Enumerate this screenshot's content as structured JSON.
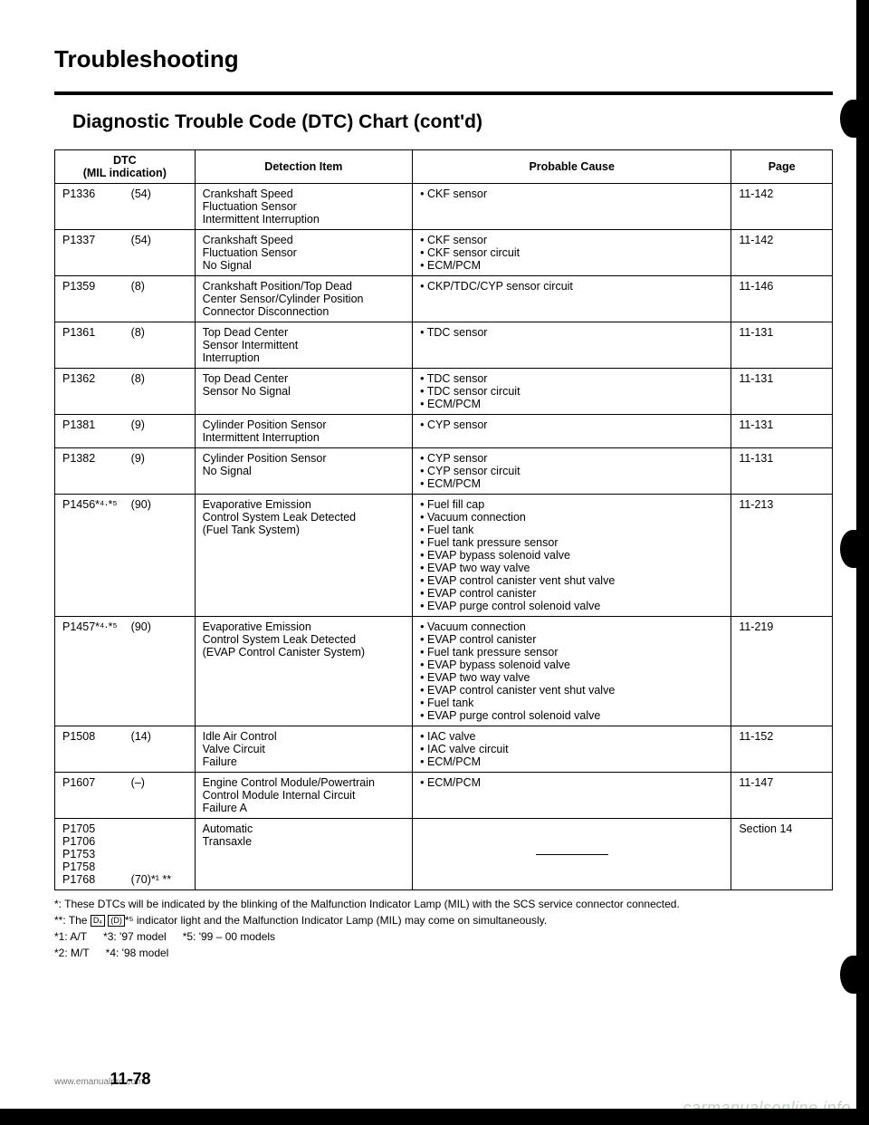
{
  "title": "Troubleshooting",
  "subtitle": "Diagnostic Trouble Code (DTC) Chart (cont'd)",
  "headers": {
    "dtc": "DTC\n(MIL indication)",
    "detection": "Detection Item",
    "cause": "Probable Cause",
    "page": "Page"
  },
  "rows": [
    {
      "code": "P1336",
      "mil": "(54)",
      "detection": "Crankshaft Speed\nFluctuation Sensor\nIntermittent Interruption",
      "causes": [
        "CKF sensor"
      ],
      "page": "11-142"
    },
    {
      "code": "P1337",
      "mil": "(54)",
      "detection": "Crankshaft Speed\nFluctuation Sensor\nNo Signal",
      "causes": [
        "CKF sensor",
        "CKF sensor circuit",
        "ECM/PCM"
      ],
      "page": "11-142"
    },
    {
      "code": "P1359",
      "mil": "(8)",
      "detection": "Crankshaft Position/Top Dead\nCenter Sensor/Cylinder Position\nConnector Disconnection",
      "causes": [
        "CKP/TDC/CYP sensor circuit"
      ],
      "page": "11-146"
    },
    {
      "code": "P1361",
      "mil": "(8)",
      "detection": "Top Dead Center\nSensor Intermittent\nInterruption",
      "causes": [
        "TDC sensor"
      ],
      "page": "11-131"
    },
    {
      "code": "P1362",
      "mil": "(8)",
      "detection": "Top Dead Center\nSensor No Signal",
      "causes": [
        "TDC sensor",
        "TDC sensor circuit",
        "ECM/PCM"
      ],
      "page": "11-131"
    },
    {
      "code": "P1381",
      "mil": "(9)",
      "detection": "Cylinder Position Sensor\nIntermittent Interruption",
      "causes": [
        "CYP sensor"
      ],
      "page": "11-131"
    },
    {
      "code": "P1382",
      "mil": "(9)",
      "detection": "Cylinder Position Sensor\nNo Signal",
      "causes": [
        "CYP sensor",
        "CYP sensor circuit",
        "ECM/PCM"
      ],
      "page": "11-131"
    },
    {
      "code": "P1456*⁴·*⁵",
      "mil": "(90)",
      "detection": "Evaporative Emission\nControl System Leak Detected\n(Fuel Tank System)",
      "causes": [
        "Fuel fill cap",
        "Vacuum connection",
        "Fuel tank",
        "Fuel tank pressure sensor",
        "EVAP bypass solenoid valve",
        "EVAP two way valve",
        "EVAP control canister vent shut valve",
        "EVAP control canister",
        "EVAP purge control solenoid valve"
      ],
      "page": "11-213"
    },
    {
      "code": "P1457*⁴·*⁵",
      "mil": "(90)",
      "detection": "Evaporative Emission\nControl System Leak Detected\n(EVAP Control Canister System)",
      "causes": [
        "Vacuum connection",
        "EVAP control canister",
        "Fuel tank pressure sensor",
        "EVAP bypass solenoid valve",
        "EVAP two way valve",
        "EVAP control canister vent shut valve",
        "Fuel tank",
        "EVAP purge control solenoid valve"
      ],
      "page": "11-219"
    },
    {
      "code": "P1508",
      "mil": "(14)",
      "detection": "Idle Air Control\nValve Circuit\nFailure",
      "causes": [
        "IAC valve",
        "IAC valve circuit",
        "ECM/PCM"
      ],
      "page": "11-152"
    },
    {
      "code": "P1607",
      "mil": "(–)",
      "detection": "Engine Control Module/Powertrain\nControl Module Internal Circuit\nFailure A",
      "causes": [
        "ECM/PCM"
      ],
      "page": "11-147"
    },
    {
      "code": "P1705\nP1706\nP1753\nP1758\nP1768",
      "mil": "(70)*¹ **",
      "detection": "Automatic\nTransaxle",
      "causes": [],
      "page": "Section 14",
      "dash": true
    }
  ],
  "footnotes": {
    "star": "*: These DTCs will be indicated by the blinking of the Malfunction Indicator Lamp (MIL) with the SCS service connector connected.",
    "dstar_pre": "**: The ",
    "dstar_post": "*⁵ indicator light and the Malfunction Indicator Lamp (MIL) may come on simultaneously.",
    "n1": "*1: A/T",
    "n3": "*3: '97 model",
    "n5": "*5: '99 – 00 models",
    "n2": "*2: M/T",
    "n4": "*4: '98 model"
  },
  "footer_site": "www.emanualpro.com",
  "page_number": "11-78",
  "watermark": "carmanualsonline.info"
}
